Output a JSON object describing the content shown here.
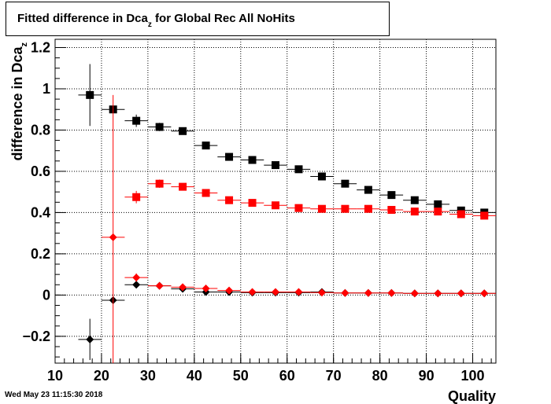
{
  "title": {
    "prefix": "Fitted difference in Dca",
    "sub": "z",
    "suffix": " for Global Rec All NoHits"
  },
  "timestamp": "Wed May 23 11:15:30 2018",
  "chart_data": {
    "type": "scatter",
    "xlabel": "Quality",
    "ylabel": "difference in Dca",
    "ylabel_sub": "z",
    "xlim": [
      10,
      105
    ],
    "ylim": [
      -0.33,
      1.24
    ],
    "xticks": [
      10,
      20,
      30,
      40,
      50,
      60,
      70,
      80,
      90,
      100
    ],
    "yticks": [
      -0.2,
      0,
      0.2,
      0.4,
      0.6,
      0.8,
      1,
      1.2
    ],
    "ytick_labels": [
      "−0.2",
      "0",
      "0.2",
      "0.4",
      "0.6",
      "0.8",
      "1",
      "1.2"
    ],
    "grid": true,
    "legend": "none",
    "bin_halfwidth": 2.5,
    "series": [
      {
        "marker": "square",
        "color": "#000000",
        "points": [
          {
            "x": 17.5,
            "y": 0.97,
            "ey": 0.15
          },
          {
            "x": 22.5,
            "y": 0.9,
            "ey": 0.0
          },
          {
            "x": 27.5,
            "y": 0.845,
            "ey": 0.03
          },
          {
            "x": 32.5,
            "y": 0.815,
            "ey": 0.02
          },
          {
            "x": 37.5,
            "y": 0.795,
            "ey": 0.012
          },
          {
            "x": 42.5,
            "y": 0.725,
            "ey": 0.01
          },
          {
            "x": 47.5,
            "y": 0.67,
            "ey": 0.008
          },
          {
            "x": 52.5,
            "y": 0.655,
            "ey": 0.008
          },
          {
            "x": 57.5,
            "y": 0.63,
            "ey": 0.007
          },
          {
            "x": 62.5,
            "y": 0.61,
            "ey": 0.007
          },
          {
            "x": 67.5,
            "y": 0.575,
            "ey": 0.007
          },
          {
            "x": 72.5,
            "y": 0.54,
            "ey": 0.006
          },
          {
            "x": 77.5,
            "y": 0.51,
            "ey": 0.006
          },
          {
            "x": 82.5,
            "y": 0.485,
            "ey": 0.006
          },
          {
            "x": 87.5,
            "y": 0.46,
            "ey": 0.006
          },
          {
            "x": 92.5,
            "y": 0.44,
            "ey": 0.006
          },
          {
            "x": 97.5,
            "y": 0.41,
            "ey": 0.005
          },
          {
            "x": 102.5,
            "y": 0.4,
            "ey": 0.005
          }
        ]
      },
      {
        "marker": "square",
        "color": "#ff0000",
        "points": [
          {
            "x": 27.5,
            "y": 0.475,
            "ey": 0.03
          },
          {
            "x": 32.5,
            "y": 0.54,
            "ey": 0.02
          },
          {
            "x": 37.5,
            "y": 0.525,
            "ey": 0.012
          },
          {
            "x": 42.5,
            "y": 0.495,
            "ey": 0.01
          },
          {
            "x": 47.5,
            "y": 0.46,
            "ey": 0.008
          },
          {
            "x": 52.5,
            "y": 0.447,
            "ey": 0.008
          },
          {
            "x": 57.5,
            "y": 0.435,
            "ey": 0.007
          },
          {
            "x": 62.5,
            "y": 0.422,
            "ey": 0.007
          },
          {
            "x": 67.5,
            "y": 0.418,
            "ey": 0.007
          },
          {
            "x": 72.5,
            "y": 0.418,
            "ey": 0.006
          },
          {
            "x": 77.5,
            "y": 0.418,
            "ey": 0.006
          },
          {
            "x": 82.5,
            "y": 0.413,
            "ey": 0.006
          },
          {
            "x": 87.5,
            "y": 0.405,
            "ey": 0.006
          },
          {
            "x": 92.5,
            "y": 0.405,
            "ey": 0.006
          },
          {
            "x": 97.5,
            "y": 0.392,
            "ey": 0.005
          },
          {
            "x": 102.5,
            "y": 0.385,
            "ey": 0.005
          }
        ]
      },
      {
        "marker": "diamond",
        "color": "#000000",
        "points": [
          {
            "x": 17.5,
            "y": -0.215,
            "ey": 0.1
          },
          {
            "x": 22.5,
            "y": -0.025,
            "ey": 0.0
          },
          {
            "x": 27.5,
            "y": 0.05,
            "ey": 0.015
          },
          {
            "x": 32.5,
            "y": 0.045,
            "ey": 0.01
          },
          {
            "x": 37.5,
            "y": 0.03,
            "ey": 0.008
          },
          {
            "x": 42.5,
            "y": 0.015,
            "ey": 0.006
          },
          {
            "x": 47.5,
            "y": 0.015,
            "ey": 0.005
          },
          {
            "x": 52.5,
            "y": 0.012,
            "ey": 0.005
          },
          {
            "x": 57.5,
            "y": 0.012,
            "ey": 0.005
          },
          {
            "x": 62.5,
            "y": 0.012,
            "ey": 0.005
          },
          {
            "x": 67.5,
            "y": 0.015,
            "ey": 0.005
          },
          {
            "x": 72.5,
            "y": 0.01,
            "ey": 0.004
          },
          {
            "x": 77.5,
            "y": 0.01,
            "ey": 0.004
          },
          {
            "x": 82.5,
            "y": 0.01,
            "ey": 0.004
          },
          {
            "x": 87.5,
            "y": 0.008,
            "ey": 0.004
          },
          {
            "x": 92.5,
            "y": 0.008,
            "ey": 0.004
          },
          {
            "x": 97.5,
            "y": 0.008,
            "ey": 0.004
          },
          {
            "x": 102.5,
            "y": 0.008,
            "ey": 0.004
          }
        ]
      },
      {
        "marker": "diamond",
        "color": "#ff0000",
        "points": [
          {
            "x": 22.5,
            "y": 0.28,
            "ey": 0.69,
            "ey_low_clip": true
          },
          {
            "x": 27.5,
            "y": 0.085,
            "ey": 0.02
          },
          {
            "x": 32.5,
            "y": 0.045,
            "ey": 0.012
          },
          {
            "x": 37.5,
            "y": 0.038,
            "ey": 0.008
          },
          {
            "x": 42.5,
            "y": 0.032,
            "ey": 0.006
          },
          {
            "x": 47.5,
            "y": 0.022,
            "ey": 0.005
          },
          {
            "x": 52.5,
            "y": 0.015,
            "ey": 0.005
          },
          {
            "x": 57.5,
            "y": 0.015,
            "ey": 0.005
          },
          {
            "x": 62.5,
            "y": 0.015,
            "ey": 0.005
          },
          {
            "x": 67.5,
            "y": 0.012,
            "ey": 0.005
          },
          {
            "x": 72.5,
            "y": 0.01,
            "ey": 0.004
          },
          {
            "x": 77.5,
            "y": 0.01,
            "ey": 0.004
          },
          {
            "x": 82.5,
            "y": 0.01,
            "ey": 0.004
          },
          {
            "x": 87.5,
            "y": 0.008,
            "ey": 0.004
          },
          {
            "x": 92.5,
            "y": 0.008,
            "ey": 0.004
          },
          {
            "x": 97.5,
            "y": 0.008,
            "ey": 0.004
          },
          {
            "x": 102.5,
            "y": 0.008,
            "ey": 0.004
          }
        ]
      }
    ]
  }
}
